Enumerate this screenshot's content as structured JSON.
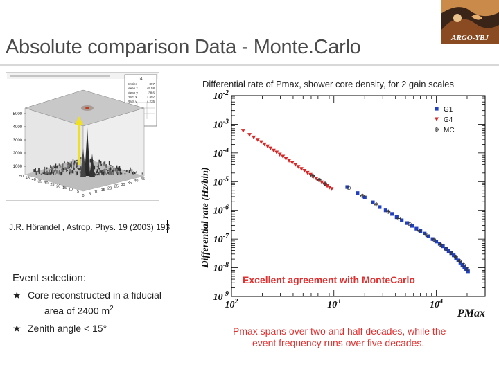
{
  "slide": {
    "title": "Absolute comparison Data - Monte.Carlo",
    "logo_text": "ARGO-YBJ",
    "citation": "J.R. Hörandel , Astrop. Phys. 19 (2003) 193",
    "event_selection": {
      "heading": "Event selection:",
      "items": [
        {
          "bullet": "★",
          "line1": "Core reconstructed in a fiducial",
          "line2": "area of 2400 m",
          "sup": "2"
        },
        {
          "bullet": "★",
          "line1": "Zenith angle < 15°"
        }
      ]
    },
    "caption": [
      "Pmax spans over two and half decades, while the",
      "event frequency runs over five decades."
    ],
    "colors": {
      "title": "#4a4a4a",
      "accent_red": "#e03030",
      "g1": "#1f3fbf",
      "g4": "#d42828",
      "mc": "#333333"
    }
  },
  "histogram_stats": {
    "name": "h1",
    "rows": [
      {
        "label": "Entries",
        "value": "897"
      },
      {
        "label": "Mean x",
        "value": "49.58"
      },
      {
        "label": "Mean y",
        "value": "38.6"
      },
      {
        "label": "RMS x",
        "value": "3.392"
      },
      {
        "label": "RMS y",
        "value": "4.235"
      }
    ]
  },
  "chart_data": [
    {
      "type": "scatter",
      "title": "Differential rate of Pmax, shower core density, for 2 gain scales",
      "xlabel": "PMax",
      "ylabel": "Differential rate (Hz/bin)",
      "xscale": "log",
      "yscale": "log",
      "xlim": [
        100,
        30000
      ],
      "ylim": [
        1e-09,
        0.01
      ],
      "x_ticks": [
        {
          "value": 100,
          "label": "10^2"
        },
        {
          "value": 1000,
          "label": "10^3"
        },
        {
          "value": 10000,
          "label": "10^4"
        }
      ],
      "y_ticks": [
        {
          "value": 0.01,
          "label": "10^-2"
        },
        {
          "value": 0.001,
          "label": "10^-3"
        },
        {
          "value": 0.0001,
          "label": "10^-4"
        },
        {
          "value": 1e-05,
          "label": "10^-5"
        },
        {
          "value": 1e-06,
          "label": "10^-6"
        },
        {
          "value": 1e-07,
          "label": "10^-7"
        },
        {
          "value": 1e-08,
          "label": "10^-8"
        },
        {
          "value": 1e-09,
          "label": "10^-9"
        }
      ],
      "legend_position": "top-right",
      "annotation": "Excellent agreement with MonteCarlo",
      "series": [
        {
          "name": "G1",
          "marker": "square",
          "color": "#1f3fbf",
          "points": [
            [
              1350,
              6.5e-06
            ],
            [
              1700,
              4e-06
            ],
            [
              2000,
              2.8e-06
            ],
            [
              2400,
              1.9e-06
            ],
            [
              2800,
              1.3e-06
            ],
            [
              3200,
              1e-06
            ],
            [
              3700,
              7.5e-07
            ],
            [
              4100,
              5.8e-07
            ],
            [
              4600,
              4.5e-07
            ],
            [
              5200,
              3.6e-07
            ],
            [
              5800,
              2.9e-07
            ],
            [
              6400,
              2.3e-07
            ],
            [
              7000,
              1.9e-07
            ],
            [
              7700,
              1.55e-07
            ],
            [
              8400,
              1.25e-07
            ],
            [
              9200,
              1e-07
            ],
            [
              10000,
              8.2e-08
            ],
            [
              10800,
              6.8e-08
            ],
            [
              11600,
              5.6e-08
            ],
            [
              12400,
              4.6e-08
            ],
            [
              13200,
              3.8e-08
            ],
            [
              14000,
              3.2e-08
            ],
            [
              14800,
              2.7e-08
            ],
            [
              15600,
              2.2e-08
            ],
            [
              16400,
              1.8e-08
            ],
            [
              17200,
              1.5e-08
            ],
            [
              18000,
              1.25e-08
            ],
            [
              18800,
              1.05e-08
            ],
            [
              19600,
              9e-09
            ],
            [
              20400,
              7.5e-09
            ]
          ]
        },
        {
          "name": "G4",
          "marker": "triangle-down",
          "color": "#d42828",
          "points": [
            [
              130,
              0.0006
            ],
            [
              150,
              0.00043
            ],
            [
              165,
              0.00035
            ],
            [
              180,
              0.00029
            ],
            [
              195,
              0.00024
            ],
            [
              210,
              0.0002
            ],
            [
              225,
              0.00017
            ],
            [
              240,
              0.000145
            ],
            [
              258,
              0.000122
            ],
            [
              276,
              0.000105
            ],
            [
              296,
              8.9e-05
            ],
            [
              318,
              7.5e-05
            ],
            [
              340,
              6.3e-05
            ],
            [
              365,
              5.4e-05
            ],
            [
              392,
              4.6e-05
            ],
            [
              420,
              3.9e-05
            ],
            [
              450,
              3.3e-05
            ],
            [
              482,
              2.8e-05
            ],
            [
              516,
              2.4e-05
            ],
            [
              552,
              2.05e-05
            ],
            [
              590,
              1.75e-05
            ],
            [
              630,
              1.5e-05
            ],
            [
              672,
              1.28e-05
            ],
            [
              716,
              1.1e-05
            ],
            [
              762,
              9.5e-06
            ],
            [
              810,
              8.2e-06
            ],
            [
              860,
              7.1e-06
            ],
            [
              905,
              6.3e-06
            ],
            [
              950,
              5.6e-06
            ]
          ]
        },
        {
          "name": "MC",
          "marker": "open-cross",
          "color": "#333333",
          "points": [
            [
              620,
              1.6e-05
            ],
            [
              720,
              1.15e-05
            ],
            [
              820,
              8.5e-06
            ],
            [
              1400,
              6e-06
            ],
            [
              1900,
              3.2e-06
            ],
            [
              2600,
              1.6e-06
            ],
            [
              3400,
              9e-07
            ],
            [
              4300,
              5.2e-07
            ],
            [
              5500,
              3.3e-07
            ],
            [
              6800,
              2e-07
            ],
            [
              8000,
              1.4e-07
            ],
            [
              9500,
              9.5e-08
            ],
            [
              11000,
              6.3e-08
            ],
            [
              12500,
              4.5e-08
            ],
            [
              14000,
              3.3e-08
            ],
            [
              15500,
              2.4e-08
            ],
            [
              17000,
              1.7e-08
            ],
            [
              18500,
              1.25e-08
            ],
            [
              20000,
              9e-09
            ]
          ]
        }
      ]
    },
    {
      "type": "lego-3d-histogram",
      "x_ticks": [
        "50",
        "45",
        "40",
        "35",
        "30",
        "25",
        "20",
        "15",
        "10",
        "5"
      ],
      "y_ticks": [
        "0",
        "5",
        "10",
        "15",
        "20",
        "25",
        "30",
        "35",
        "40",
        "45"
      ],
      "z_ticks": [
        "1000",
        "2000",
        "3000",
        "4000",
        "5000"
      ],
      "peak_value": 5200
    }
  ]
}
